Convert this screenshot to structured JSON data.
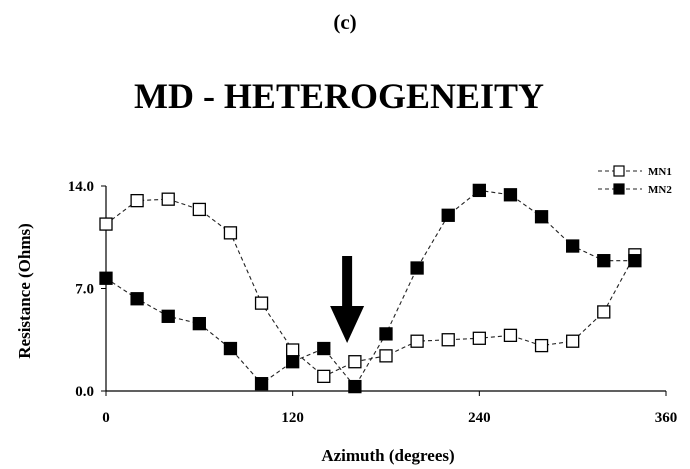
{
  "panel_label": "(c)",
  "chart_data": {
    "type": "line",
    "title": "MD - HETEROGENEITY",
    "xlabel": "Azimuth (degrees)",
    "ylabel": "Resistance (Ohms)",
    "xlim": [
      0,
      360
    ],
    "ylim": [
      0,
      14
    ],
    "xticks": [
      0,
      120,
      240,
      360
    ],
    "xtick_labels": [
      "0",
      "120",
      "240",
      "360"
    ],
    "yticks": [
      0,
      7,
      14
    ],
    "ytick_labels": [
      "0.0",
      "7.0",
      "14.0"
    ],
    "grid": false,
    "legend_position": "top-right",
    "x": [
      0,
      20,
      40,
      60,
      80,
      100,
      120,
      140,
      160,
      180,
      200,
      220,
      240,
      260,
      280,
      300,
      320,
      340
    ],
    "series": [
      {
        "name": "MN1",
        "marker": "open-square",
        "color": "#000000",
        "values": [
          11.4,
          13.0,
          13.1,
          12.4,
          10.8,
          6.0,
          2.8,
          1.0,
          2.0,
          2.4,
          3.4,
          3.5,
          3.6,
          3.8,
          3.1,
          3.4,
          5.4,
          9.3
        ]
      },
      {
        "name": "MN2",
        "marker": "filled-square",
        "color": "#000000",
        "values": [
          7.7,
          6.3,
          5.1,
          4.6,
          2.9,
          0.5,
          2.0,
          2.9,
          0.3,
          3.9,
          8.4,
          12.0,
          13.7,
          13.4,
          11.9,
          9.9,
          8.9,
          8.9
        ]
      }
    ],
    "annotation": {
      "type": "down-arrow",
      "x": 155
    }
  }
}
